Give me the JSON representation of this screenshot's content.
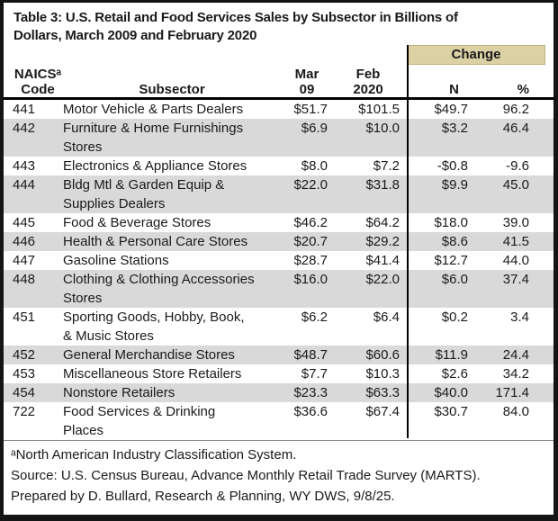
{
  "title": "Table 3: U.S. Retail and Food Services Sales by Subsector in Billions of\nDollars, March 2009 and February 2020",
  "header": {
    "change_label": "Change",
    "col_naics": "NAICSᵃ\nCode",
    "col_subsector": "Subsector",
    "col_mar": "Mar\n09",
    "col_feb": "Feb\n2020",
    "col_n": "N",
    "col_pct": "%"
  },
  "rows": [
    {
      "code": "441",
      "subsector": "Motor Vehicle & Parts Dealers",
      "mar09": "$51.7",
      "feb2020": "$101.5",
      "n": "$49.7",
      "pct": "96.2"
    },
    {
      "code": "442",
      "subsector": "Furniture & Home Furnishings\nStores",
      "mar09": "$6.9",
      "feb2020": "$10.0",
      "n": "$3.2",
      "pct": "46.4"
    },
    {
      "code": "443",
      "subsector": "Electronics & Appliance Stores",
      "mar09": "$8.0",
      "feb2020": "$7.2",
      "n": "-$0.8",
      "pct": "-9.6"
    },
    {
      "code": "444",
      "subsector": "Bldg Mtl & Garden Equip &\nSupplies Dealers",
      "mar09": "$22.0",
      "feb2020": "$31.8",
      "n": "$9.9",
      "pct": "45.0"
    },
    {
      "code": "445",
      "subsector": "Food & Beverage Stores",
      "mar09": "$46.2",
      "feb2020": "$64.2",
      "n": "$18.0",
      "pct": "39.0"
    },
    {
      "code": "446",
      "subsector": "Health & Personal Care Stores",
      "mar09": "$20.7",
      "feb2020": "$29.2",
      "n": "$8.6",
      "pct": "41.5"
    },
    {
      "code": "447",
      "subsector": "Gasoline Stations",
      "mar09": "$28.7",
      "feb2020": "$41.4",
      "n": "$12.7",
      "pct": "44.0"
    },
    {
      "code": "448",
      "subsector": "Clothing & Clothing Accessories\nStores",
      "mar09": "$16.0",
      "feb2020": "$22.0",
      "n": "$6.0",
      "pct": "37.4"
    },
    {
      "code": "451",
      "subsector": "Sporting Goods, Hobby, Book,\n& Music Stores",
      "mar09": "$6.2",
      "feb2020": "$6.4",
      "n": "$0.2",
      "pct": "3.4"
    },
    {
      "code": "452",
      "subsector": "General Merchandise Stores",
      "mar09": "$48.7",
      "feb2020": "$60.6",
      "n": "$11.9",
      "pct": "24.4"
    },
    {
      "code": "453",
      "subsector": "Miscellaneous Store Retailers",
      "mar09": "$7.7",
      "feb2020": "$10.3",
      "n": "$2.6",
      "pct": "34.2"
    },
    {
      "code": "454",
      "subsector": "Nonstore Retailers",
      "mar09": "$23.3",
      "feb2020": "$63.3",
      "n": "$40.0",
      "pct": "171.4"
    },
    {
      "code": "722",
      "subsector": "Food Services & Drinking\nPlaces",
      "mar09": "$36.6",
      "feb2020": "$67.4",
      "n": "$30.7",
      "pct": "84.0"
    }
  ],
  "footnotes": [
    "ᵃNorth American Industry Classification System.",
    "Source: U.S. Census Bureau, Advance Monthly Retail Trade Survey (MARTS).",
    "Prepared by D. Bullard, Research & Planning, WY DWS, 9/8/25."
  ],
  "colors": {
    "change_header_bg": "#dcd0a5",
    "change_header_border": "#bfb27e",
    "row_stripe": "#d9d9d9",
    "border": "#141414",
    "text": "#1a1a1a"
  }
}
